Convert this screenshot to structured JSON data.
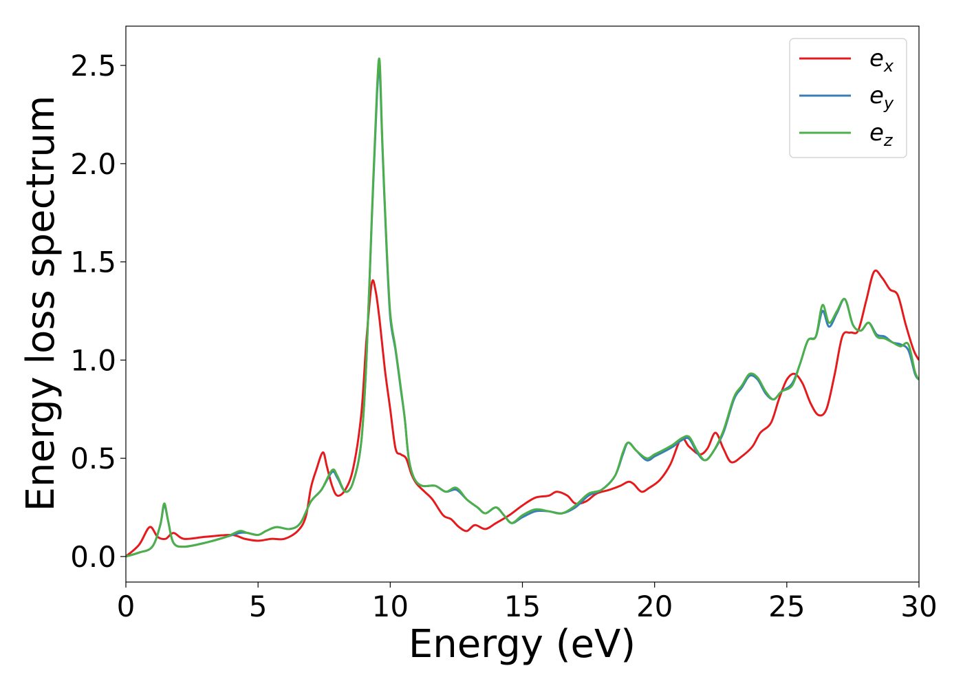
{
  "chart_data": {
    "type": "line",
    "xlabel": "Energy (eV)",
    "ylabel": "Energy loss spectrum",
    "xlim": [
      0,
      30
    ],
    "ylim": [
      -0.13,
      2.7
    ],
    "xticks": [
      0,
      5,
      10,
      15,
      20,
      25,
      30
    ],
    "xtick_labels": [
      "0",
      "5",
      "10",
      "15",
      "20",
      "25",
      "30"
    ],
    "yticks": [
      0.0,
      0.5,
      1.0,
      1.5,
      2.0,
      2.5
    ],
    "ytick_labels": [
      "0.0",
      "0.5",
      "1.0",
      "1.5",
      "2.0",
      "2.5"
    ],
    "grid": false,
    "legend_position": "top-right",
    "series": [
      {
        "name": "e_x",
        "label_main": "e",
        "label_sub": "x",
        "color": "#e41a1c",
        "points": [
          [
            0,
            0
          ],
          [
            0.5,
            0.06
          ],
          [
            0.9,
            0.15
          ],
          [
            1.2,
            0.1
          ],
          [
            1.5,
            0.09
          ],
          [
            1.8,
            0.12
          ],
          [
            2.2,
            0.09
          ],
          [
            3,
            0.1
          ],
          [
            4,
            0.11
          ],
          [
            4.5,
            0.09
          ],
          [
            5,
            0.08
          ],
          [
            5.5,
            0.09
          ],
          [
            6,
            0.09
          ],
          [
            6.5,
            0.13
          ],
          [
            6.8,
            0.2
          ],
          [
            7.0,
            0.35
          ],
          [
            7.2,
            0.44
          ],
          [
            7.45,
            0.53
          ],
          [
            7.6,
            0.46
          ],
          [
            7.8,
            0.36
          ],
          [
            8.0,
            0.31
          ],
          [
            8.3,
            0.34
          ],
          [
            8.6,
            0.45
          ],
          [
            8.9,
            0.72
          ],
          [
            9.1,
            1.1
          ],
          [
            9.3,
            1.39
          ],
          [
            9.45,
            1.35
          ],
          [
            9.6,
            1.2
          ],
          [
            9.8,
            0.95
          ],
          [
            10.0,
            0.75
          ],
          [
            10.2,
            0.55
          ],
          [
            10.4,
            0.52
          ],
          [
            10.6,
            0.5
          ],
          [
            10.8,
            0.42
          ],
          [
            11.0,
            0.37
          ],
          [
            11.3,
            0.33
          ],
          [
            11.6,
            0.29
          ],
          [
            12.0,
            0.21
          ],
          [
            12.3,
            0.19
          ],
          [
            12.6,
            0.15
          ],
          [
            12.9,
            0.13
          ],
          [
            13.2,
            0.16
          ],
          [
            13.6,
            0.14
          ],
          [
            14.0,
            0.17
          ],
          [
            14.5,
            0.21
          ],
          [
            15.0,
            0.26
          ],
          [
            15.5,
            0.3
          ],
          [
            16.0,
            0.31
          ],
          [
            16.3,
            0.33
          ],
          [
            16.7,
            0.31
          ],
          [
            17.0,
            0.27
          ],
          [
            17.4,
            0.28
          ],
          [
            17.8,
            0.32
          ],
          [
            18.3,
            0.34
          ],
          [
            18.7,
            0.36
          ],
          [
            19.0,
            0.38
          ],
          [
            19.2,
            0.37
          ],
          [
            19.5,
            0.33
          ],
          [
            19.8,
            0.35
          ],
          [
            20.2,
            0.39
          ],
          [
            20.6,
            0.47
          ],
          [
            21.0,
            0.6
          ],
          [
            21.3,
            0.56
          ],
          [
            21.7,
            0.52
          ],
          [
            22.0,
            0.55
          ],
          [
            22.3,
            0.63
          ],
          [
            22.6,
            0.55
          ],
          [
            22.9,
            0.48
          ],
          [
            23.3,
            0.51
          ],
          [
            23.7,
            0.56
          ],
          [
            24.0,
            0.63
          ],
          [
            24.4,
            0.68
          ],
          [
            24.7,
            0.8
          ],
          [
            25.0,
            0.9
          ],
          [
            25.3,
            0.93
          ],
          [
            25.6,
            0.88
          ],
          [
            25.9,
            0.78
          ],
          [
            26.2,
            0.72
          ],
          [
            26.5,
            0.75
          ],
          [
            26.8,
            0.92
          ],
          [
            27.1,
            1.12
          ],
          [
            27.4,
            1.14
          ],
          [
            27.7,
            1.15
          ],
          [
            28.0,
            1.3
          ],
          [
            28.3,
            1.45
          ],
          [
            28.6,
            1.42
          ],
          [
            28.9,
            1.36
          ],
          [
            29.2,
            1.33
          ],
          [
            29.5,
            1.18
          ],
          [
            29.8,
            1.05
          ],
          [
            30,
            1.0
          ]
        ]
      },
      {
        "name": "e_y",
        "label_main": "e",
        "label_sub": "y",
        "color": "#377eb8",
        "points": [
          [
            0,
            0
          ],
          [
            0.5,
            0.02
          ],
          [
            1.0,
            0.05
          ],
          [
            1.3,
            0.16
          ],
          [
            1.45,
            0.26
          ],
          [
            1.6,
            0.18
          ],
          [
            1.8,
            0.07
          ],
          [
            2.2,
            0.05
          ],
          [
            3,
            0.07
          ],
          [
            3.8,
            0.1
          ],
          [
            4.3,
            0.12
          ],
          [
            4.6,
            0.12
          ],
          [
            5.0,
            0.11
          ],
          [
            5.3,
            0.13
          ],
          [
            5.7,
            0.15
          ],
          [
            6.2,
            0.14
          ],
          [
            6.6,
            0.17
          ],
          [
            7.0,
            0.28
          ],
          [
            7.4,
            0.34
          ],
          [
            7.8,
            0.43
          ],
          [
            8.0,
            0.4
          ],
          [
            8.3,
            0.33
          ],
          [
            8.6,
            0.38
          ],
          [
            8.9,
            0.58
          ],
          [
            9.1,
            1.0
          ],
          [
            9.3,
            1.7
          ],
          [
            9.5,
            2.35
          ],
          [
            9.6,
            2.47
          ],
          [
            9.7,
            2.1
          ],
          [
            9.85,
            1.6
          ],
          [
            10.0,
            1.22
          ],
          [
            10.2,
            1.05
          ],
          [
            10.4,
            0.85
          ],
          [
            10.55,
            0.7
          ],
          [
            10.7,
            0.5
          ],
          [
            10.9,
            0.4
          ],
          [
            11.2,
            0.36
          ],
          [
            11.7,
            0.36
          ],
          [
            12.1,
            0.33
          ],
          [
            12.5,
            0.34
          ],
          [
            12.9,
            0.29
          ],
          [
            13.3,
            0.25
          ],
          [
            13.6,
            0.22
          ],
          [
            14.0,
            0.25
          ],
          [
            14.3,
            0.21
          ],
          [
            14.6,
            0.17
          ],
          [
            15.0,
            0.2
          ],
          [
            15.5,
            0.23
          ],
          [
            16.0,
            0.23
          ],
          [
            16.5,
            0.22
          ],
          [
            17.0,
            0.25
          ],
          [
            17.5,
            0.31
          ],
          [
            18.0,
            0.34
          ],
          [
            18.5,
            0.41
          ],
          [
            18.8,
            0.52
          ],
          [
            19.0,
            0.58
          ],
          [
            19.3,
            0.54
          ],
          [
            19.7,
            0.49
          ],
          [
            20.0,
            0.51
          ],
          [
            20.3,
            0.53
          ],
          [
            20.7,
            0.56
          ],
          [
            21.0,
            0.59
          ],
          [
            21.3,
            0.6
          ],
          [
            21.6,
            0.53
          ],
          [
            21.9,
            0.49
          ],
          [
            22.2,
            0.53
          ],
          [
            22.6,
            0.63
          ],
          [
            23.0,
            0.8
          ],
          [
            23.3,
            0.86
          ],
          [
            23.6,
            0.92
          ],
          [
            23.9,
            0.9
          ],
          [
            24.2,
            0.83
          ],
          [
            24.5,
            0.8
          ],
          [
            24.8,
            0.84
          ],
          [
            25.2,
            0.88
          ],
          [
            25.5,
            0.98
          ],
          [
            25.8,
            1.1
          ],
          [
            26.1,
            1.12
          ],
          [
            26.35,
            1.25
          ],
          [
            26.6,
            1.17
          ],
          [
            26.9,
            1.24
          ],
          [
            27.2,
            1.31
          ],
          [
            27.5,
            1.18
          ],
          [
            27.8,
            1.15
          ],
          [
            28.1,
            1.19
          ],
          [
            28.4,
            1.13
          ],
          [
            28.7,
            1.12
          ],
          [
            29.0,
            1.09
          ],
          [
            29.3,
            1.08
          ],
          [
            29.6,
            1.05
          ],
          [
            29.85,
            0.93
          ],
          [
            30,
            0.9
          ]
        ]
      },
      {
        "name": "e_z",
        "label_main": "e",
        "label_sub": "z",
        "color": "#4daf4a",
        "points": [
          [
            0,
            0
          ],
          [
            0.5,
            0.02
          ],
          [
            1.0,
            0.05
          ],
          [
            1.3,
            0.16
          ],
          [
            1.45,
            0.27
          ],
          [
            1.6,
            0.18
          ],
          [
            1.8,
            0.07
          ],
          [
            2.2,
            0.05
          ],
          [
            3,
            0.07
          ],
          [
            3.8,
            0.1
          ],
          [
            4.3,
            0.13
          ],
          [
            4.6,
            0.12
          ],
          [
            5.0,
            0.11
          ],
          [
            5.3,
            0.13
          ],
          [
            5.7,
            0.15
          ],
          [
            6.2,
            0.14
          ],
          [
            6.6,
            0.17
          ],
          [
            7.0,
            0.28
          ],
          [
            7.4,
            0.34
          ],
          [
            7.8,
            0.44
          ],
          [
            8.0,
            0.41
          ],
          [
            8.3,
            0.33
          ],
          [
            8.6,
            0.38
          ],
          [
            8.9,
            0.58
          ],
          [
            9.1,
            1.0
          ],
          [
            9.3,
            1.72
          ],
          [
            9.5,
            2.38
          ],
          [
            9.6,
            2.52
          ],
          [
            9.7,
            2.12
          ],
          [
            9.85,
            1.62
          ],
          [
            10.0,
            1.24
          ],
          [
            10.2,
            1.06
          ],
          [
            10.4,
            0.86
          ],
          [
            10.55,
            0.7
          ],
          [
            10.7,
            0.5
          ],
          [
            10.9,
            0.4
          ],
          [
            11.2,
            0.36
          ],
          [
            11.7,
            0.36
          ],
          [
            12.1,
            0.33
          ],
          [
            12.5,
            0.35
          ],
          [
            12.9,
            0.29
          ],
          [
            13.3,
            0.25
          ],
          [
            13.6,
            0.22
          ],
          [
            14.0,
            0.25
          ],
          [
            14.3,
            0.21
          ],
          [
            14.6,
            0.17
          ],
          [
            15.0,
            0.21
          ],
          [
            15.5,
            0.24
          ],
          [
            16.0,
            0.23
          ],
          [
            16.5,
            0.22
          ],
          [
            17.0,
            0.26
          ],
          [
            17.5,
            0.32
          ],
          [
            18.0,
            0.34
          ],
          [
            18.5,
            0.41
          ],
          [
            18.8,
            0.53
          ],
          [
            19.0,
            0.58
          ],
          [
            19.3,
            0.54
          ],
          [
            19.7,
            0.5
          ],
          [
            20.0,
            0.52
          ],
          [
            20.3,
            0.54
          ],
          [
            20.7,
            0.57
          ],
          [
            21.0,
            0.6
          ],
          [
            21.3,
            0.61
          ],
          [
            21.6,
            0.54
          ],
          [
            21.9,
            0.49
          ],
          [
            22.2,
            0.53
          ],
          [
            22.6,
            0.64
          ],
          [
            23.0,
            0.81
          ],
          [
            23.3,
            0.87
          ],
          [
            23.6,
            0.93
          ],
          [
            23.9,
            0.91
          ],
          [
            24.2,
            0.84
          ],
          [
            24.5,
            0.8
          ],
          [
            24.8,
            0.84
          ],
          [
            25.2,
            0.87
          ],
          [
            25.5,
            0.98
          ],
          [
            25.8,
            1.1
          ],
          [
            26.1,
            1.12
          ],
          [
            26.35,
            1.28
          ],
          [
            26.6,
            1.19
          ],
          [
            26.9,
            1.25
          ],
          [
            27.2,
            1.31
          ],
          [
            27.5,
            1.18
          ],
          [
            27.8,
            1.15
          ],
          [
            28.1,
            1.19
          ],
          [
            28.4,
            1.12
          ],
          [
            28.7,
            1.11
          ],
          [
            29.0,
            1.09
          ],
          [
            29.3,
            1.07
          ],
          [
            29.6,
            1.08
          ],
          [
            29.85,
            0.94
          ],
          [
            30,
            0.9
          ]
        ]
      }
    ]
  }
}
